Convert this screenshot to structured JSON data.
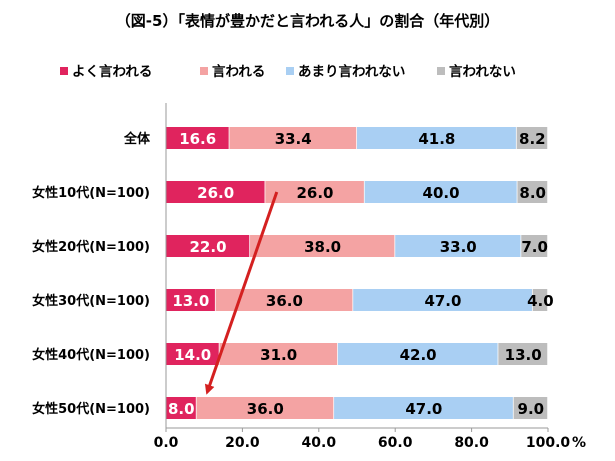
{
  "title": "（図-5）「表情が豊かだと言われる人」の割合（年代別）",
  "chart_data": {
    "type": "bar",
    "orientation": "horizontal",
    "stacked": true,
    "categories": [
      "全体",
      "女性10代(N=100)",
      "女性20代(N=100)",
      "女性30代(N=100)",
      "女性40代(N=100)",
      "女性50代(N=100)"
    ],
    "series": [
      {
        "name": "よく言われる",
        "color": "#e0245e",
        "label_color": "#ffffff",
        "values": [
          16.6,
          26.0,
          22.0,
          13.0,
          14.0,
          8.0
        ],
        "labels": [
          "16.6",
          "26.0",
          "22.0",
          "13.0",
          "14.0",
          "8.0"
        ]
      },
      {
        "name": "言われる",
        "color": "#f4a3a3",
        "label_color": "#000000",
        "values": [
          33.4,
          26.0,
          38.0,
          36.0,
          31.0,
          36.0
        ],
        "labels": [
          "33.4",
          "26.0",
          "38.0",
          "36.0",
          "31.0",
          "36.0"
        ]
      },
      {
        "name": "あまり言われない",
        "color": "#a9cff3",
        "label_color": "#000000",
        "values": [
          41.8,
          40.0,
          33.0,
          47.0,
          42.0,
          47.0
        ],
        "labels": [
          "41.8",
          "40.0",
          "33.0",
          "47.0",
          "42.0",
          "47.0"
        ]
      },
      {
        "name": "言われない",
        "color": "#bdbdbd",
        "label_color": "#000000",
        "values": [
          8.2,
          8.0,
          7.0,
          4.0,
          13.0,
          9.0
        ],
        "labels": [
          "8.2",
          "8.0",
          "7.0",
          "4.0",
          "13.0",
          "9.0"
        ]
      }
    ],
    "x_ticks": [
      "0.0",
      "20.0",
      "40.0",
      "60.0",
      "80.0",
      "100.0"
    ],
    "x_unit": "%",
    "xlim": [
      0,
      100
    ],
    "grid": false,
    "legend": "top",
    "annotation": {
      "type": "arrow",
      "color": "#d42020",
      "from": {
        "category": "女性10代(N=100)",
        "x": 29
      },
      "to": {
        "category": "女性50代(N=100)",
        "x": 11
      }
    }
  }
}
